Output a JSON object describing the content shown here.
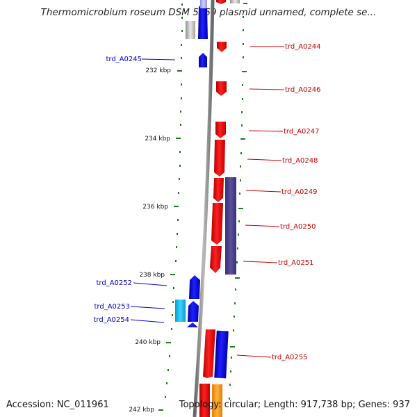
{
  "title": "Thermomicrobium roseum DSM 5159 plasmid unnamed, complete se...",
  "footer": {
    "accession": "Accession: NC_011961",
    "topology": "Topology: circular; Length: 917,738 bp; Genes: 937"
  },
  "scale_labels": [
    "232 kbp",
    "234 kbp",
    "236 kbp",
    "238 kbp",
    "240 kbp",
    "242 kbp"
  ],
  "genes": {
    "reverse": [
      "trd_A0245",
      "trd_A0252",
      "trd_A0253",
      "trd_A0254"
    ],
    "forward": [
      "trd_A0244",
      "trd_A0246",
      "trd_A0247",
      "trd_A0248",
      "trd_A0249",
      "trd_A0250",
      "trd_A0251",
      "trd_A0255"
    ]
  },
  "colors": {
    "forward_gene": "#ff0000",
    "reverse_gene": "#0000ff",
    "forward_label": "#cc0000",
    "reverse_label": "#0000cc",
    "tick": "#1a7a1a",
    "backbone": "#888888"
  }
}
